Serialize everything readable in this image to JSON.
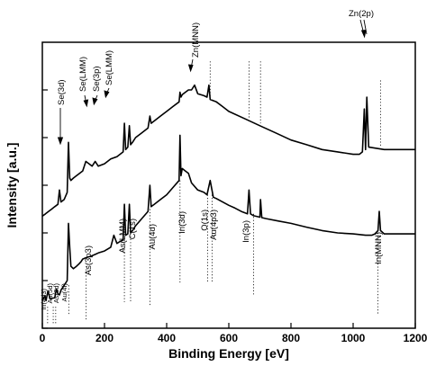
{
  "chart_data": {
    "type": "line",
    "xlabel": "Binding Energy [eV]",
    "ylabel": "Intensity [a.u.]",
    "xlim": [
      0,
      1200
    ],
    "xticks": [
      0,
      200,
      400,
      600,
      800,
      1000,
      1200
    ],
    "xtick_labels": [
      "0",
      "200",
      "400",
      "600",
      "800",
      "1000",
      "1200"
    ],
    "y_tick_labels": "none",
    "y_ticks": [
      0,
      1,
      2,
      3,
      4,
      5
    ],
    "ylim": [
      0,
      6
    ],
    "grid": false,
    "legend": "none",
    "series": [
      {
        "x": [
          0,
          8,
          12,
          18,
          25,
          40,
          45,
          50,
          55,
          60,
          70,
          80,
          84,
          88,
          92,
          100,
          110,
          118,
          125,
          130,
          140,
          150,
          160,
          170,
          180,
          200,
          220,
          230,
          240,
          250,
          260,
          264,
          268,
          275,
          280,
          284,
          290,
          300,
          320,
          340,
          346,
          350,
          360,
          380,
          400,
          420,
          440,
          443,
          446,
          450,
          460,
          470,
          480,
          500,
          520,
          530,
          540,
          550,
          560,
          580,
          600,
          620,
          640,
          660,
          665,
          670,
          680,
          700,
          702,
          706,
          720,
          760,
          800,
          850,
          900,
          950,
          1000,
          1040,
          1060,
          1070,
          1080,
          1084,
          1088,
          1100,
          1150,
          1200
        ],
        "y": [
          0.58,
          0.68,
          0.58,
          0.78,
          0.62,
          0.64,
          0.82,
          0.72,
          0.7,
          0.8,
          0.9,
          1.0,
          2.2,
          1.7,
          1.3,
          1.25,
          1.3,
          1.35,
          1.4,
          1.45,
          1.48,
          1.5,
          1.52,
          1.55,
          1.58,
          1.62,
          1.7,
          1.95,
          1.78,
          1.82,
          1.85,
          2.6,
          1.95,
          1.98,
          2.6,
          2.0,
          2.05,
          2.15,
          2.3,
          2.45,
          3.0,
          2.55,
          2.6,
          2.7,
          2.8,
          2.95,
          3.1,
          4.05,
          3.2,
          3.35,
          3.3,
          3.25,
          3.05,
          2.9,
          2.85,
          2.8,
          3.1,
          2.75,
          2.72,
          2.65,
          2.58,
          2.52,
          2.45,
          2.4,
          2.9,
          2.4,
          2.36,
          2.33,
          2.7,
          2.32,
          2.3,
          2.25,
          2.2,
          2.12,
          2.05,
          2.0,
          1.98,
          1.95,
          1.95,
          1.98,
          2.05,
          2.45,
          2.05,
          1.98,
          1.98,
          1.98
        ]
      },
      {
        "x": [
          0,
          10,
          20,
          30,
          40,
          50,
          55,
          60,
          70,
          80,
          84,
          88,
          92,
          100,
          110,
          130,
          140,
          150,
          160,
          170,
          180,
          200,
          220,
          240,
          260,
          264,
          268,
          275,
          280,
          284,
          290,
          300,
          320,
          340,
          346,
          350,
          360,
          380,
          400,
          420,
          440,
          443,
          446,
          450,
          460,
          470,
          480,
          490,
          500,
          520,
          530,
          536,
          540,
          560,
          580,
          600,
          650,
          700,
          750,
          800,
          850,
          900,
          950,
          1000,
          1020,
          1030,
          1036,
          1040,
          1044,
          1050,
          1100,
          1150,
          1200
        ],
        "y": [
          2.35,
          2.4,
          2.45,
          2.5,
          2.55,
          2.6,
          2.9,
          2.65,
          2.7,
          2.85,
          3.9,
          3.15,
          3.1,
          3.15,
          3.2,
          3.3,
          3.5,
          3.45,
          3.4,
          3.5,
          3.4,
          3.45,
          3.55,
          3.6,
          3.7,
          4.3,
          3.75,
          3.8,
          4.25,
          3.85,
          3.9,
          4.0,
          4.1,
          4.2,
          4.45,
          4.3,
          4.35,
          4.45,
          4.55,
          4.65,
          4.75,
          4.95,
          4.85,
          4.9,
          4.95,
          5.0,
          5.0,
          5.1,
          4.92,
          4.88,
          4.85,
          5.1,
          4.8,
          4.75,
          4.65,
          4.55,
          4.4,
          4.25,
          4.1,
          3.95,
          3.85,
          3.75,
          3.7,
          3.65,
          3.65,
          3.7,
          4.6,
          3.75,
          4.85,
          3.8,
          3.75,
          3.75,
          3.75
        ]
      }
    ],
    "annotations": [
      {
        "text": "Se(3d)",
        "x": 55
      },
      {
        "text": "Se(LMM)",
        "x": 140
      },
      {
        "text": "Se(3p)",
        "x": 162
      },
      {
        "text": "Se(LMM)",
        "x": 182
      },
      {
        "text": "Zn(MNN)",
        "x": 487
      },
      {
        "text": "Zn(2p)",
        "x": 1030
      },
      {
        "text": "In(4d3)",
        "x": 17
      },
      {
        "text": "Au(5d)",
        "x": 35
      },
      {
        "text": "As(3d)",
        "x": 43
      },
      {
        "text": "Au(4f)",
        "x": 85
      },
      {
        "text": "As(3p3)",
        "x": 141
      },
      {
        "text": "As(LMM)",
        "x": 264
      },
      {
        "text": "C(1s)",
        "x": 284
      },
      {
        "text": "Au(4d)",
        "x": 346
      },
      {
        "text": "In(3d)",
        "x": 443
      },
      {
        "text": "O(1s)",
        "x": 532
      },
      {
        "text": "Au(4p3)",
        "x": 546
      },
      {
        "text": "In(3p)",
        "x": 680
      },
      {
        "text": "In(MNN)",
        "x": 1080
      }
    ],
    "color": "#000000"
  }
}
